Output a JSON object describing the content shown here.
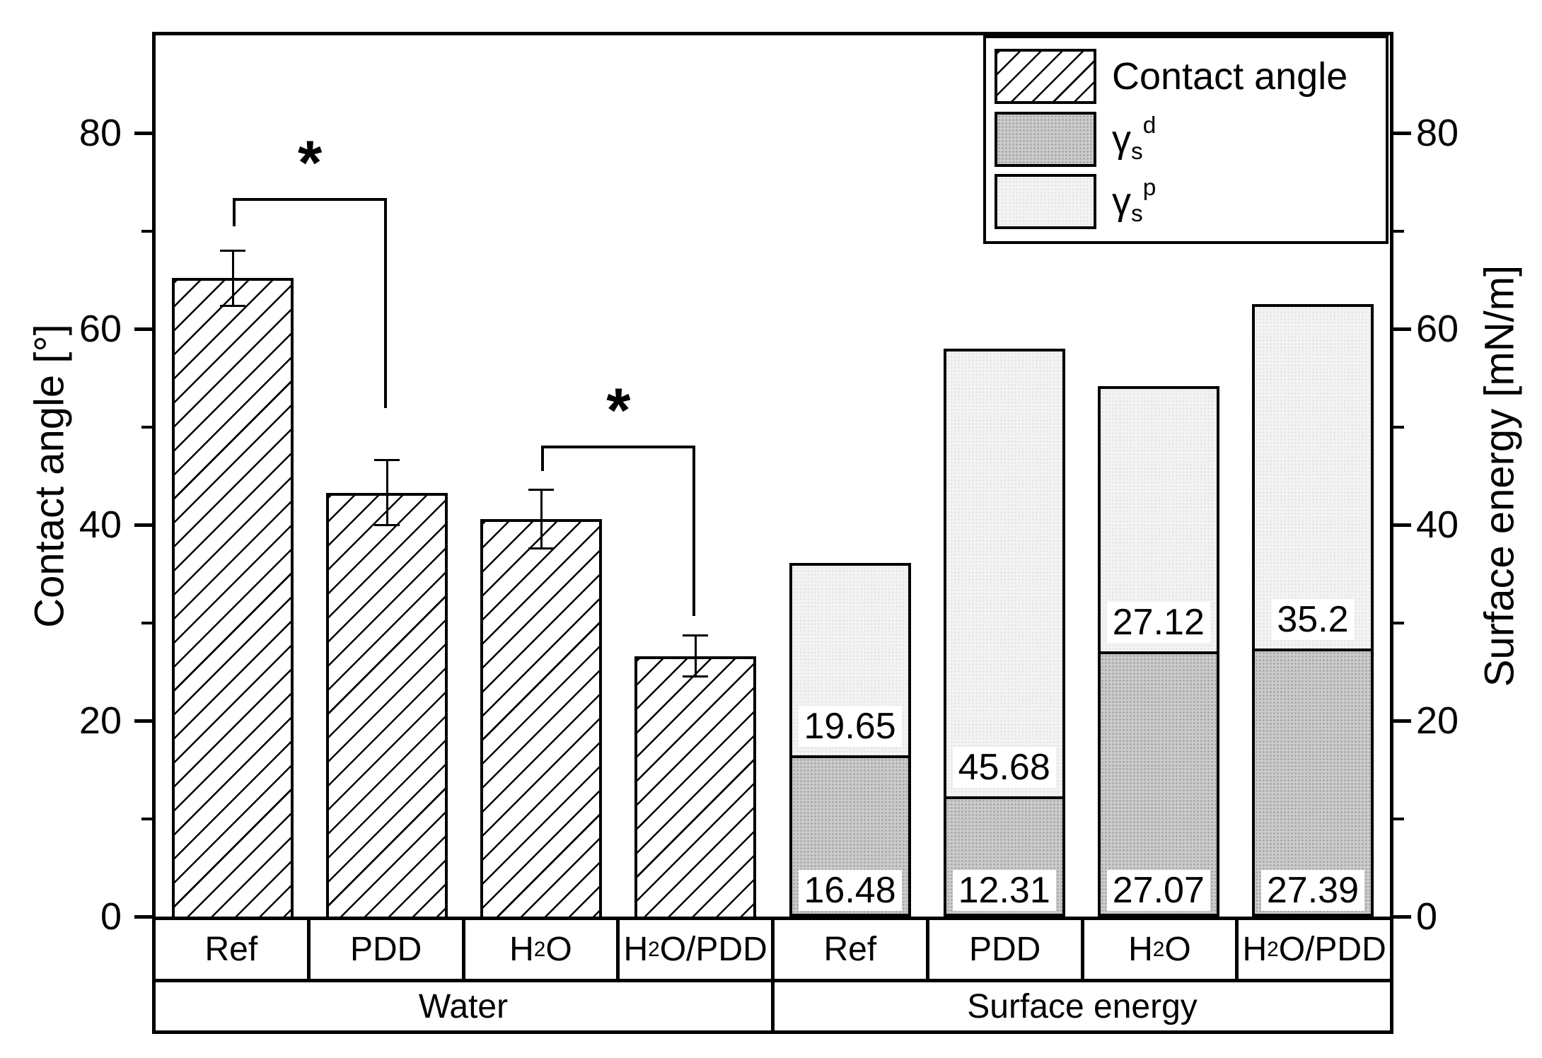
{
  "chart_data": {
    "type": "bar",
    "ylim": [
      0,
      90
    ],
    "y_major_ticks": [
      0,
      20,
      40,
      60,
      80
    ],
    "y_minor_ticks": [
      10,
      30,
      50,
      70
    ],
    "left_axis_label": "Contact angle [°]",
    "right_axis_label": "Surface energy [mN/m]",
    "grid": false,
    "legend_position": "top-right",
    "legend": [
      {
        "swatch": "hatch",
        "parts": [
          {
            "t": "Contact angle"
          }
        ]
      },
      {
        "swatch": "dark",
        "parts": [
          {
            "t": "γ"
          },
          {
            "t": "s",
            "sub": true
          },
          {
            "t": "d",
            "sup": true
          }
        ]
      },
      {
        "swatch": "light",
        "parts": [
          {
            "t": "γ"
          },
          {
            "t": "s",
            "sub": true
          },
          {
            "t": "p",
            "sup": true
          }
        ]
      }
    ],
    "groups": [
      {
        "label": "Water",
        "type": "contact_angle",
        "bars": [
          {
            "parts": [
              {
                "t": "Ref"
              }
            ],
            "value": 65.2,
            "error": 2.9
          },
          {
            "parts": [
              {
                "t": "PDD"
              }
            ],
            "value": 43.3,
            "error": 3.4
          },
          {
            "parts": [
              {
                "t": "H"
              },
              {
                "t": "2",
                "sub": true
              },
              {
                "t": "O"
              }
            ],
            "value": 40.6,
            "error": 3.1
          },
          {
            "parts": [
              {
                "t": "H"
              },
              {
                "t": "2",
                "sub": true
              },
              {
                "t": "O/PDD"
              }
            ],
            "value": 26.6,
            "error": 2.2
          }
        ]
      },
      {
        "label": "Surface energy",
        "type": "stacked",
        "bars": [
          {
            "parts": [
              {
                "t": "Ref"
              }
            ],
            "dispersive_label": "16.48",
            "polar_label": "19.65"
          },
          {
            "parts": [
              {
                "t": "PDD"
              }
            ],
            "dispersive_label": "12.31",
            "polar_label": "45.68"
          },
          {
            "parts": [
              {
                "t": "H"
              },
              {
                "t": "2",
                "sub": true
              },
              {
                "t": "O"
              }
            ],
            "dispersive_label": "27.07",
            "polar_label": "27.12"
          },
          {
            "parts": [
              {
                "t": "H"
              },
              {
                "t": "2",
                "sub": true
              },
              {
                "t": "O/PDD"
              }
            ],
            "dispersive_label": "27.39",
            "polar_label": "35.2"
          }
        ]
      }
    ],
    "significance": [
      {
        "from_slot": 0,
        "to_slot": 1,
        "symbol": "*",
        "top": 73.4,
        "left_end": 70.5,
        "right_end": 51.9
      },
      {
        "from_slot": 2,
        "to_slot": 3,
        "symbol": "*",
        "top": 48.1,
        "left_end": 45.5,
        "right_end": 30.7
      }
    ],
    "colors": {
      "line": "#000000",
      "background": "#ffffff",
      "dispersive_fill": "#cbcbcb",
      "polar_fill": "#f3f3f3"
    }
  }
}
